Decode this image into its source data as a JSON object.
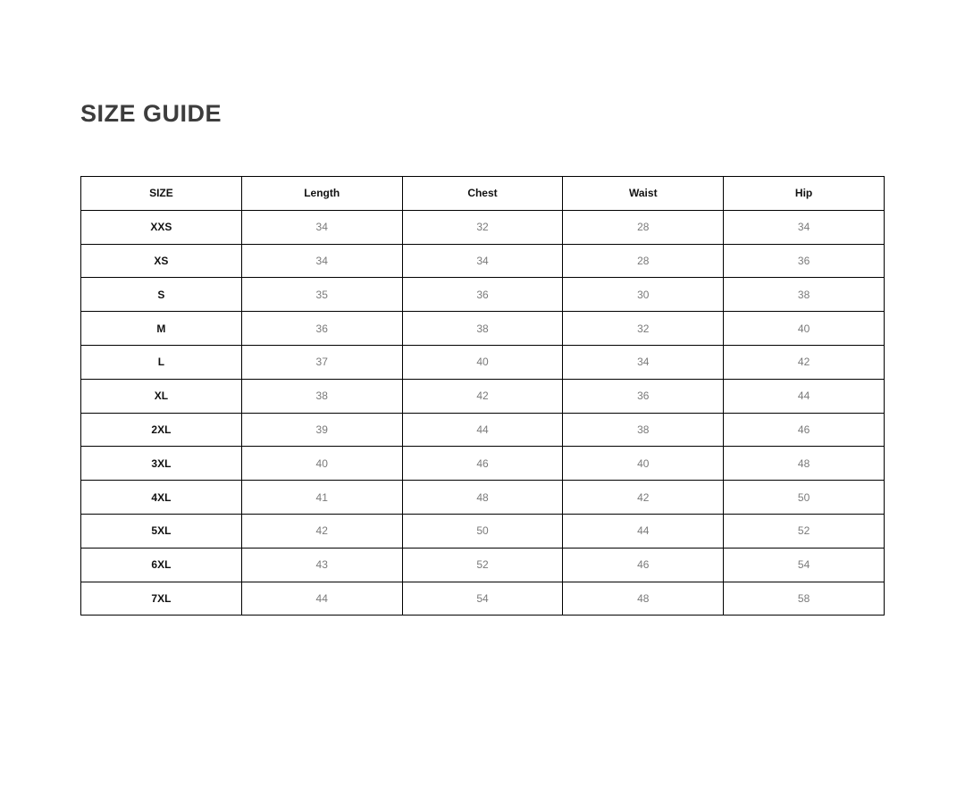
{
  "page": {
    "title": "SIZE GUIDE"
  },
  "size_table": {
    "columns": [
      "SIZE",
      "Length",
      "Chest",
      "Waist",
      "Hip"
    ],
    "rows": [
      {
        "size": "XXS",
        "values": [
          "34",
          "32",
          "28",
          "34"
        ]
      },
      {
        "size": "XS",
        "values": [
          "34",
          "34",
          "28",
          "36"
        ]
      },
      {
        "size": "S",
        "values": [
          "35",
          "36",
          "30",
          "38"
        ]
      },
      {
        "size": "M",
        "values": [
          "36",
          "38",
          "32",
          "40"
        ]
      },
      {
        "size": "L",
        "values": [
          "37",
          "40",
          "34",
          "42"
        ]
      },
      {
        "size": "XL",
        "values": [
          "38",
          "42",
          "36",
          "44"
        ]
      },
      {
        "size": "2XL",
        "values": [
          "39",
          "44",
          "38",
          "46"
        ]
      },
      {
        "size": "3XL",
        "values": [
          "40",
          "46",
          "40",
          "48"
        ]
      },
      {
        "size": "4XL",
        "values": [
          "41",
          "48",
          "42",
          "50"
        ]
      },
      {
        "size": "5XL",
        "values": [
          "42",
          "50",
          "44",
          "52"
        ]
      },
      {
        "size": "6XL",
        "values": [
          "43",
          "52",
          "46",
          "54"
        ]
      },
      {
        "size": "7XL",
        "values": [
          "44",
          "54",
          "48",
          "58"
        ]
      }
    ]
  }
}
